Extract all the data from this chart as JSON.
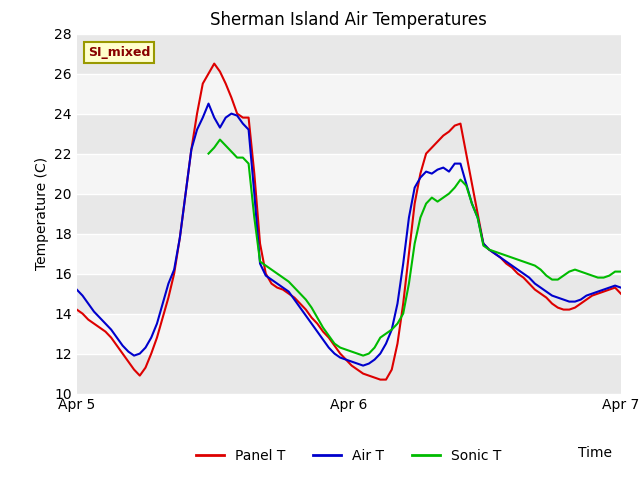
{
  "title": "Sherman Island Air Temperatures",
  "xlabel": "Time",
  "ylabel": "Temperature (C)",
  "ylim": [
    10,
    28
  ],
  "xlim": [
    0,
    48
  ],
  "xtick_positions": [
    0,
    24,
    48
  ],
  "xtick_labels": [
    "Apr 5",
    "Apr 6",
    "Apr 7"
  ],
  "ytick_positions": [
    10,
    12,
    14,
    16,
    18,
    20,
    22,
    24,
    26,
    28
  ],
  "plot_bg_color": "#e8e8e8",
  "band_colors": [
    "#e8e8e8",
    "#f5f5f5"
  ],
  "grid_color": "white",
  "label_box_text": "SI_mixed",
  "label_box_facecolor": "#ffffcc",
  "label_box_edgecolor": "#999900",
  "label_box_textcolor": "#880000",
  "colors": {
    "panel_t": "#dd0000",
    "air_t": "#0000cc",
    "sonic_t": "#00bb00"
  },
  "legend_labels": [
    "Panel T",
    "Air T",
    "Sonic T"
  ],
  "panel_t": [
    14.2,
    14.0,
    13.7,
    13.5,
    13.3,
    13.1,
    12.8,
    12.4,
    12.0,
    11.6,
    11.2,
    10.9,
    11.3,
    12.0,
    12.8,
    13.8,
    14.8,
    16.0,
    17.8,
    20.0,
    22.2,
    24.0,
    25.5,
    26.0,
    26.5,
    26.1,
    25.5,
    24.8,
    24.0,
    23.8,
    23.8,
    21.0,
    17.5,
    16.0,
    15.5,
    15.3,
    15.2,
    15.0,
    14.8,
    14.5,
    14.2,
    13.8,
    13.5,
    13.1,
    12.8,
    12.4,
    12.0,
    11.7,
    11.4,
    11.2,
    11.0,
    10.9,
    10.8,
    10.7,
    10.7,
    11.2,
    12.5,
    14.5,
    17.0,
    19.5,
    21.0,
    22.0,
    22.3,
    22.6,
    22.9,
    23.1,
    23.4,
    23.5,
    22.0,
    20.5,
    19.0,
    17.5,
    17.2,
    17.0,
    16.8,
    16.5,
    16.3,
    16.0,
    15.8,
    15.5,
    15.2,
    15.0,
    14.8,
    14.5,
    14.3,
    14.2,
    14.2,
    14.3,
    14.5,
    14.7,
    14.9,
    15.0,
    15.1,
    15.2,
    15.3,
    15.0
  ],
  "air_t": [
    15.2,
    14.9,
    14.5,
    14.1,
    13.8,
    13.5,
    13.2,
    12.8,
    12.4,
    12.1,
    11.9,
    12.0,
    12.3,
    12.8,
    13.5,
    14.5,
    15.5,
    16.2,
    17.8,
    20.0,
    22.2,
    23.2,
    23.8,
    24.5,
    23.8,
    23.3,
    23.8,
    24.0,
    23.9,
    23.5,
    23.2,
    20.0,
    16.5,
    15.9,
    15.7,
    15.5,
    15.3,
    15.1,
    14.7,
    14.3,
    13.9,
    13.5,
    13.1,
    12.7,
    12.3,
    12.0,
    11.8,
    11.7,
    11.6,
    11.5,
    11.4,
    11.5,
    11.7,
    12.0,
    12.5,
    13.2,
    14.5,
    16.5,
    18.8,
    20.3,
    20.8,
    21.1,
    21.0,
    21.2,
    21.3,
    21.1,
    21.5,
    21.5,
    20.5,
    19.5,
    18.8,
    17.5,
    17.2,
    17.0,
    16.8,
    16.6,
    16.4,
    16.2,
    16.0,
    15.8,
    15.5,
    15.3,
    15.1,
    14.9,
    14.8,
    14.7,
    14.6,
    14.6,
    14.7,
    14.9,
    15.0,
    15.1,
    15.2,
    15.3,
    15.4,
    15.3
  ],
  "sonic_t": [
    null,
    null,
    null,
    null,
    null,
    null,
    null,
    null,
    null,
    null,
    null,
    null,
    null,
    null,
    null,
    null,
    null,
    null,
    null,
    null,
    null,
    null,
    null,
    22.0,
    22.3,
    22.7,
    22.4,
    22.1,
    21.8,
    21.8,
    21.5,
    18.8,
    16.6,
    16.4,
    16.2,
    16.0,
    15.8,
    15.6,
    15.3,
    15.0,
    14.7,
    14.3,
    13.8,
    13.3,
    12.9,
    12.5,
    12.3,
    12.2,
    12.1,
    12.0,
    11.9,
    12.0,
    12.3,
    12.8,
    13.0,
    13.2,
    13.5,
    14.0,
    15.5,
    17.5,
    18.8,
    19.5,
    19.8,
    19.6,
    19.8,
    20.0,
    20.3,
    20.7,
    20.4,
    19.5,
    18.8,
    17.4,
    17.2,
    17.1,
    17.0,
    16.9,
    16.8,
    16.7,
    16.6,
    16.5,
    16.4,
    16.2,
    15.9,
    15.7,
    15.7,
    15.9,
    16.1,
    16.2,
    16.1,
    16.0,
    15.9,
    15.8,
    15.8,
    15.9,
    16.1,
    16.1
  ]
}
